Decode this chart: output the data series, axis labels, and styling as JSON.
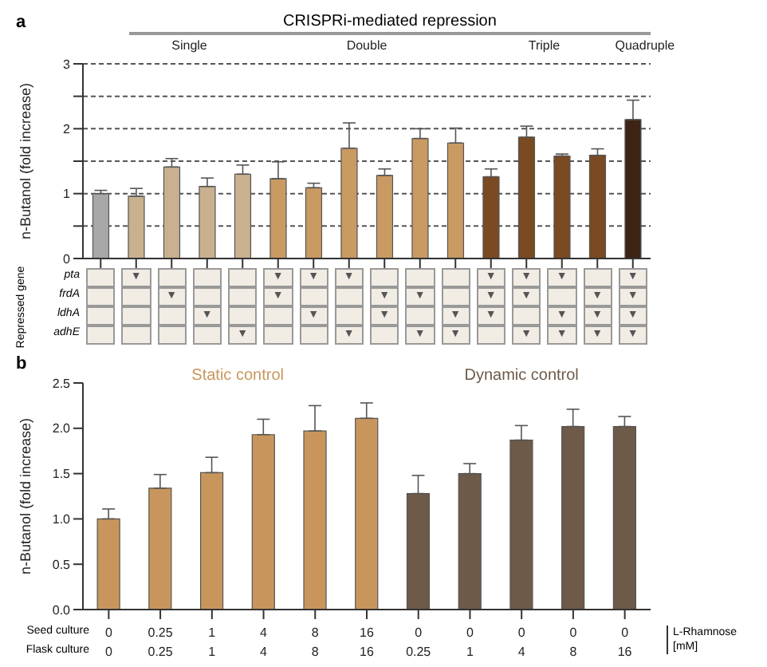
{
  "chart_data": [
    {
      "type": "bar",
      "title": "CRISPRi-mediated repression",
      "annotations": [
        "a",
        "Single",
        "Double",
        "Triple",
        "Quadruple"
      ],
      "ylabel": "n-Butanol (fold increase)",
      "categories": [
        null,
        null,
        null,
        null,
        null,
        null,
        null,
        null,
        null,
        null,
        null,
        null,
        null,
        null,
        null,
        null
      ],
      "values": [
        1.0,
        0.96,
        1.41,
        1.11,
        1.3,
        1.23,
        1.09,
        1.7,
        1.28,
        1.85,
        1.78,
        1.26,
        1.87,
        1.58,
        1.59,
        2.14
      ],
      "colors": [
        "#a8a8a8",
        "#c9b08f",
        "#c9b08f",
        "#c9b08f",
        "#c9b08f",
        "#c99a62",
        "#c99a62",
        "#c99a62",
        "#c99a62",
        "#c99a62",
        "#c99a62",
        "#7a4a22",
        "#7a4a22",
        "#7a4a22",
        "#7a4a22",
        "#3d2414"
      ],
      "errors": [
        [
          1.0,
          1.05
        ],
        [
          0.96,
          1.08
        ],
        [
          1.41,
          1.54
        ],
        [
          1.11,
          1.24
        ],
        [
          1.3,
          1.44
        ],
        [
          1.23,
          1.49
        ],
        [
          1.09,
          1.16
        ],
        [
          1.7,
          2.09
        ],
        [
          1.28,
          1.38
        ],
        [
          1.85,
          2.0
        ],
        [
          1.78,
          2.01
        ],
        [
          1.26,
          1.38
        ],
        [
          1.87,
          2.04
        ],
        [
          1.58,
          1.61
        ],
        [
          1.59,
          1.69
        ],
        [
          2.14,
          2.44
        ]
      ],
      "ylim": [
        0,
        3
      ],
      "yticks": [
        0,
        {
          "value": 0.5,
          "label": null
        },
        1,
        {
          "value": 1.5,
          "label": null
        },
        2,
        {
          "value": 2.5,
          "label": null
        },
        3
      ],
      "grid": "y"
    },
    {
      "type": "heatmap",
      "ylabel": "Repressed gene",
      "categories": [
        null,
        null,
        null,
        null,
        null,
        null,
        null,
        null,
        null,
        null,
        null,
        null,
        null,
        null,
        null,
        null
      ],
      "y_categories": [
        "pta",
        "frdA",
        "ldhA",
        "adhE"
      ],
      "cells": [
        [
          null,
          null,
          null,
          null,
          null,
          null,
          null,
          null,
          null,
          null,
          null,
          null,
          null,
          null,
          null,
          null
        ],
        [
          null,
          null,
          null,
          null,
          null,
          null,
          null,
          null,
          null,
          null,
          null,
          null,
          null,
          null,
          null,
          null
        ],
        [
          null,
          null,
          null,
          null,
          null,
          null,
          null,
          null,
          null,
          null,
          null,
          null,
          null,
          null,
          null,
          null
        ],
        [
          null,
          null,
          null,
          null,
          null,
          null,
          null,
          null,
          null,
          null,
          null,
          null,
          null,
          null,
          null,
          null
        ]
      ],
      "cell_labels": [
        [
          null,
          "▼",
          null,
          null,
          null,
          "▼",
          "▼",
          "▼",
          null,
          null,
          null,
          "▼",
          "▼",
          "▼",
          null,
          "▼"
        ],
        [
          null,
          null,
          "▼",
          null,
          null,
          "▼",
          null,
          null,
          "▼",
          "▼",
          null,
          "▼",
          "▼",
          null,
          "▼",
          "▼"
        ],
        [
          null,
          null,
          null,
          "▼",
          null,
          null,
          "▼",
          null,
          "▼",
          null,
          "▼",
          "▼",
          null,
          "▼",
          "▼",
          "▼"
        ],
        [
          null,
          null,
          null,
          null,
          "▼",
          null,
          null,
          "▼",
          null,
          "▼",
          "▼",
          null,
          "▼",
          "▼",
          "▼",
          "▼"
        ]
      ]
    },
    {
      "type": "bar",
      "ylabel": "n-Butanol (fold increase)",
      "annotations": [
        "b",
        "Seed culture",
        "Flask culture",
        "L-Rhamnose [mM]"
      ],
      "categories": [
        "0\n0",
        "0.25\n0.25",
        "1\n1",
        "4\n4",
        "8\n8",
        "16\n16",
        "0\n0.25",
        "0\n1",
        "0\n4",
        "0\n8",
        "0\n16"
      ],
      "series": [
        {
          "name": "Static control",
          "color": "#c8965c",
          "values": [
            1.0,
            1.34,
            1.51,
            1.93,
            1.97,
            2.11,
            null,
            null,
            null,
            null,
            null
          ],
          "errors": [
            [
              1.0,
              1.11
            ],
            [
              1.34,
              1.49
            ],
            [
              1.51,
              1.68
            ],
            [
              1.93,
              2.1
            ],
            [
              1.97,
              2.25
            ],
            [
              2.11,
              2.28
            ],
            null,
            null,
            null,
            null,
            null
          ]
        },
        {
          "name": "Dynamic control",
          "color": "#6e5a48",
          "values": [
            null,
            null,
            null,
            null,
            null,
            null,
            1.28,
            1.5,
            1.87,
            2.02,
            2.02
          ],
          "errors": [
            null,
            null,
            null,
            null,
            null,
            null,
            [
              1.28,
              1.48
            ],
            [
              1.5,
              1.61
            ],
            [
              1.87,
              2.03
            ],
            [
              2.02,
              2.21
            ],
            [
              2.02,
              2.13
            ]
          ]
        }
      ],
      "ylim": [
        0,
        2.5
      ],
      "yticks": [
        {
          "value": 0,
          "label": "0.0"
        },
        {
          "value": 0.5,
          "label": "0.5"
        },
        {
          "value": 1,
          "label": "1.0"
        },
        {
          "value": 1.5,
          "label": "1.5"
        },
        {
          "value": 2,
          "label": "2.0"
        },
        {
          "value": 2.5,
          "label": "2.5"
        }
      ]
    }
  ]
}
